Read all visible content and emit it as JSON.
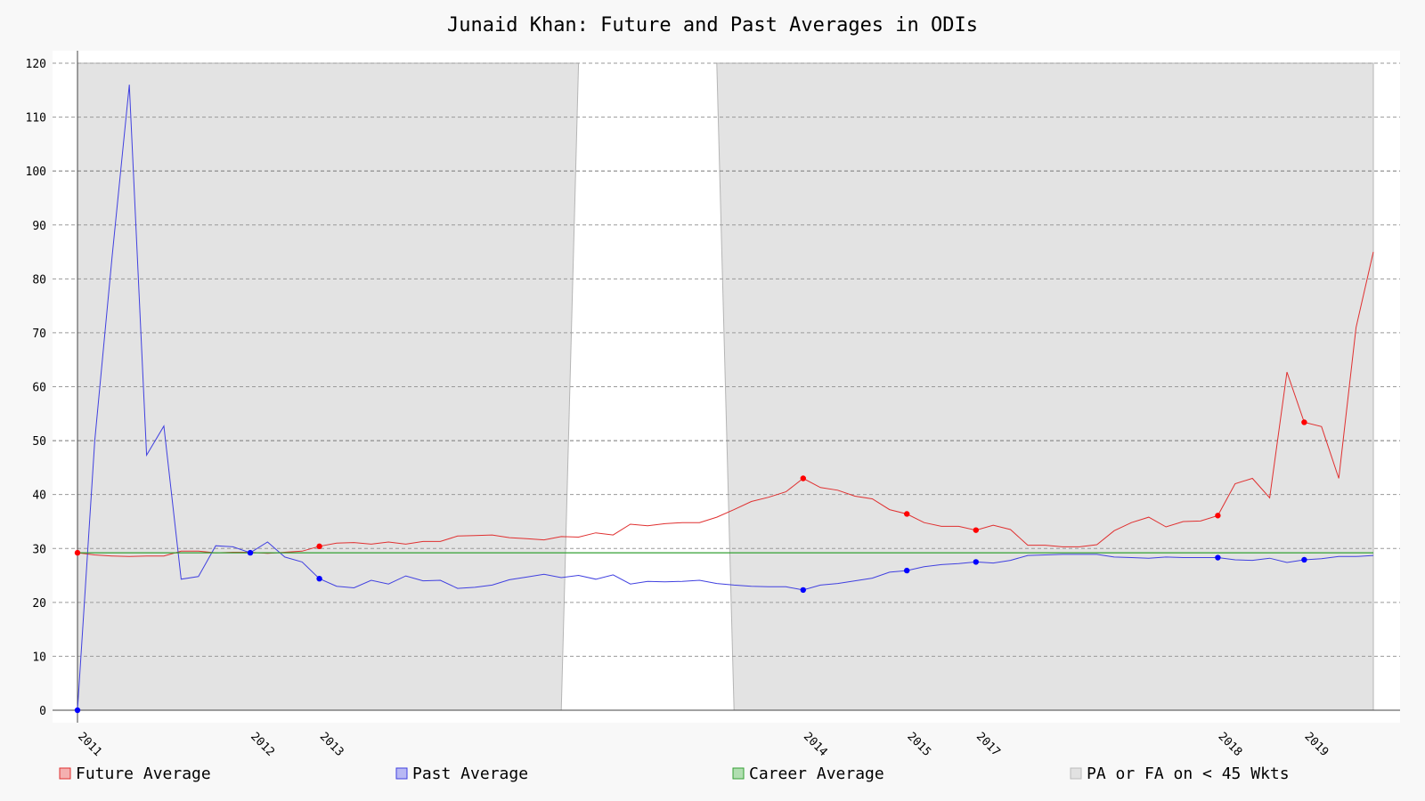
{
  "chart_data": {
    "type": "line",
    "title": "Junaid Khan: Future and Past Averages in ODIs",
    "xlabel": "",
    "ylabel": "",
    "ylim": [
      0,
      120
    ],
    "yticks": [
      0,
      10,
      20,
      30,
      40,
      50,
      60,
      70,
      80,
      90,
      100,
      110,
      120
    ],
    "grid": true,
    "legend_position": "bottom",
    "x_tick_labels": [
      {
        "label": "2011",
        "index": 0
      },
      {
        "label": "2012",
        "index": 10
      },
      {
        "label": "2013",
        "index": 14
      },
      {
        "label": "2014",
        "index": 42
      },
      {
        "label": "2015",
        "index": 48
      },
      {
        "label": "2017",
        "index": 52
      },
      {
        "label": "2018",
        "index": 66
      },
      {
        "label": "2019",
        "index": 71
      }
    ],
    "x_count": 76,
    "series": [
      {
        "name": "Future Average",
        "color": "#e03030",
        "marker_color": "#ff0000",
        "marker_indices": [
          0,
          14,
          42,
          48,
          52,
          66,
          71
        ],
        "values": [
          29.2,
          28.8,
          28.6,
          28.5,
          28.6,
          28.6,
          29.5,
          29.5,
          29.2,
          29.3,
          29.3,
          29.1,
          29.3,
          29.5,
          30.4,
          31.0,
          31.1,
          30.8,
          31.2,
          30.8,
          31.3,
          31.3,
          32.3,
          32.4,
          32.5,
          32.0,
          31.8,
          31.6,
          32.2,
          32.1,
          32.9,
          32.5,
          34.5,
          34.2,
          34.6,
          34.8,
          34.8,
          35.8,
          37.2,
          38.7,
          39.5,
          40.5,
          43.0,
          41.3,
          40.8,
          39.7,
          39.2,
          37.2,
          36.4,
          34.8,
          34.1,
          34.1,
          33.4,
          34.3,
          33.5,
          30.6,
          30.6,
          30.3,
          30.3,
          30.7,
          33.3,
          34.8,
          35.8,
          34.0,
          35.0,
          35.1,
          36.1,
          42.0,
          43.0,
          39.4,
          62.7,
          53.4,
          52.6,
          43.0,
          71.0,
          85.0
        ]
      },
      {
        "name": "Past Average",
        "color": "#4040e0",
        "marker_color": "#0000ff",
        "marker_indices": [
          0,
          10,
          14,
          42,
          48,
          52,
          66,
          71
        ],
        "values": [
          0,
          50.0,
          84.0,
          116.0,
          47.3,
          52.7,
          24.3,
          24.8,
          30.5,
          30.3,
          29.2,
          31.2,
          28.4,
          27.5,
          24.4,
          23.0,
          22.7,
          24.1,
          23.4,
          24.9,
          24.0,
          24.1,
          22.6,
          22.8,
          23.2,
          24.2,
          24.7,
          25.2,
          24.6,
          25.0,
          24.3,
          25.1,
          23.4,
          23.9,
          23.8,
          23.9,
          24.1,
          23.5,
          23.2,
          23.0,
          22.9,
          22.9,
          22.3,
          23.2,
          23.5,
          24.0,
          24.5,
          25.6,
          25.9,
          26.6,
          27.0,
          27.2,
          27.5,
          27.3,
          27.8,
          28.7,
          28.8,
          28.9,
          28.9,
          28.9,
          28.4,
          28.3,
          28.2,
          28.4,
          28.3,
          28.3,
          28.3,
          27.9,
          27.8,
          28.2,
          27.4,
          27.9,
          28.1,
          28.5,
          28.5,
          28.7
        ]
      },
      {
        "name": "Career Average",
        "color": "#33a033",
        "values": [
          29.2
        ]
      }
    ],
    "shaded_regions": [
      {
        "name": "PA or FA on < 45 Wkts",
        "from_index": 0,
        "to_index": 28,
        "top_to_index": 29
      },
      {
        "name": "PA or FA on < 45 Wkts",
        "from_index": 38,
        "to_index": 75,
        "top_from_index": 37
      }
    ],
    "legend": [
      {
        "label": "Future Average",
        "fill": "#f4b0b0",
        "stroke": "#e03030"
      },
      {
        "label": "Past Average",
        "fill": "#b8b8f4",
        "stroke": "#4040e0"
      },
      {
        "label": "Career Average",
        "fill": "#b0deb0",
        "stroke": "#33a033"
      },
      {
        "label": "PA or FA on < 45 Wkts",
        "fill": "#e2e2e2",
        "stroke": "#bbbbbb"
      }
    ]
  }
}
